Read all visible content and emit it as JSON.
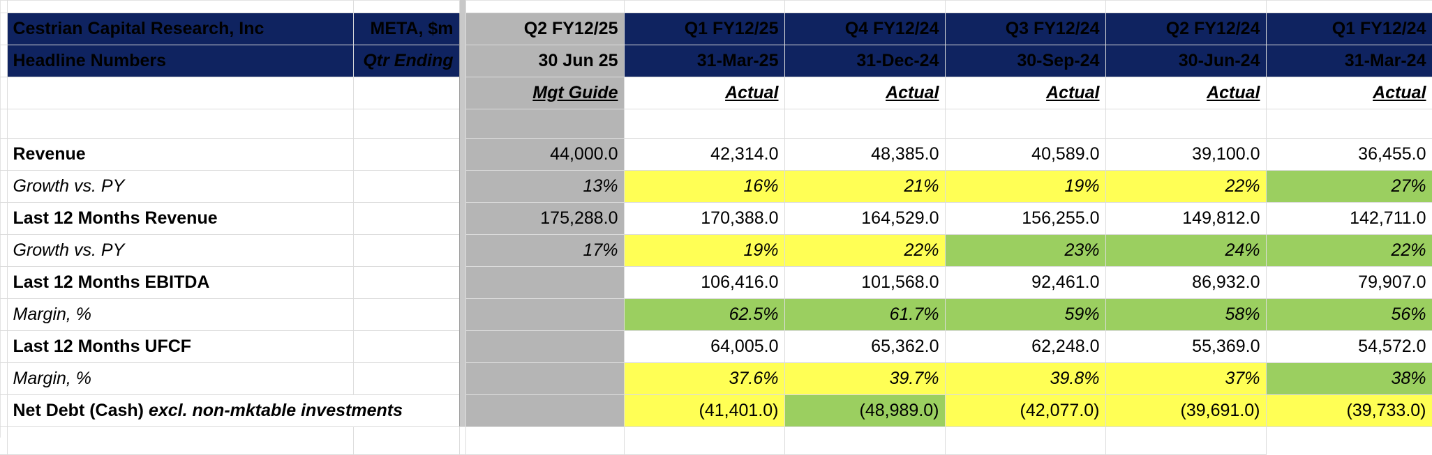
{
  "header": {
    "title_line1": "Cestrian Capital Research, Inc",
    "title_line2": "Headline Numbers",
    "ticker": "META, $m",
    "qtr_ending": "Qtr Ending"
  },
  "columns": [
    {
      "quarter": "Q2 FY12/25",
      "date": "30 Jun 25",
      "type": "Mgt Guide"
    },
    {
      "quarter": "Q1 FY12/25",
      "date": "31-Mar-25",
      "type": "Actual"
    },
    {
      "quarter": "Q4 FY12/24",
      "date": "31-Dec-24",
      "type": "Actual"
    },
    {
      "quarter": "Q3 FY12/24",
      "date": "30-Sep-24",
      "type": "Actual"
    },
    {
      "quarter": "Q2 FY12/24",
      "date": "30-Jun-24",
      "type": "Actual"
    },
    {
      "quarter": "Q1 FY12/24",
      "date": "31-Mar-24",
      "type": "Actual"
    }
  ],
  "rows": [
    {
      "label": "Revenue",
      "values": [
        "44,000.0",
        "42,314.0",
        "48,385.0",
        "40,589.0",
        "39,100.0",
        "36,455.0"
      ]
    },
    {
      "label": "Growth vs. PY",
      "values": [
        "13%",
        "16%",
        "21%",
        "19%",
        "22%",
        "27%"
      ]
    },
    {
      "label": "Last 12 Months Revenue",
      "values": [
        "175,288.0",
        "170,388.0",
        "164,529.0",
        "156,255.0",
        "149,812.0",
        "142,711.0"
      ]
    },
    {
      "label": "Growth vs. PY",
      "values": [
        "17%",
        "19%",
        "22%",
        "23%",
        "24%",
        "22%"
      ]
    },
    {
      "label": "Last 12 Months EBITDA",
      "values": [
        "",
        "106,416.0",
        "101,568.0",
        "92,461.0",
        "86,932.0",
        "79,907.0"
      ]
    },
    {
      "label": "Margin, %",
      "values": [
        "",
        "62.5%",
        "61.7%",
        "59%",
        "58%",
        "56%"
      ]
    },
    {
      "label": "Last 12 Months UFCF",
      "values": [
        "",
        "64,005.0",
        "65,362.0",
        "62,248.0",
        "55,369.0",
        "54,572.0"
      ]
    },
    {
      "label": "Margin, %",
      "values": [
        "",
        "37.6%",
        "39.7%",
        "39.8%",
        "37%",
        "38%"
      ]
    },
    {
      "label": "Net Debt (Cash)",
      "label_italic": "excl. non-mktable investments",
      "values": [
        "",
        "(41,401.0)",
        "(48,989.0)",
        "(42,077.0)",
        "(39,691.0)",
        "(39,733.0)"
      ]
    }
  ],
  "colors": {
    "header_bg": "#0f2360",
    "guide_bg": "#b5b5b5",
    "highlight_yellow": "#ffff55",
    "highlight_green": "#9bcf60",
    "negative_text": "#e0271c"
  }
}
